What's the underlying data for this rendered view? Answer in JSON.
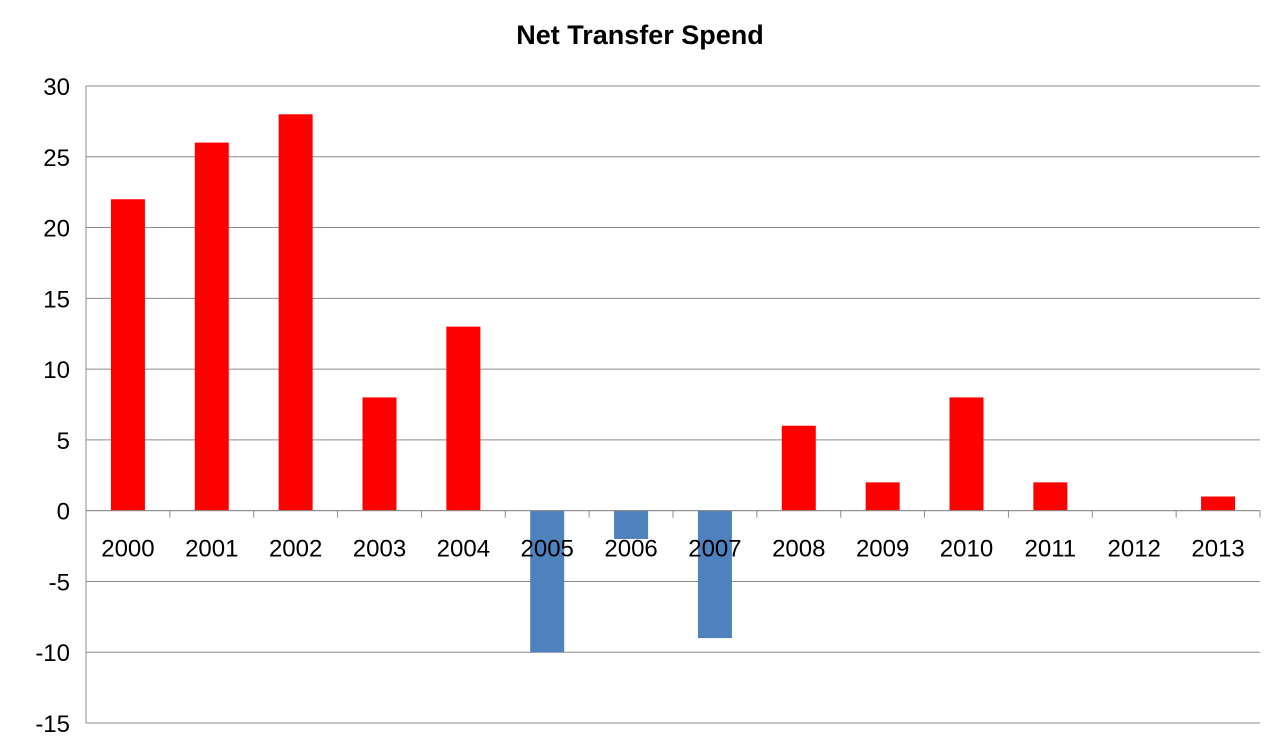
{
  "chart_data": {
    "type": "bar",
    "title": "Net Transfer Spend",
    "xlabel": "",
    "ylabel": "",
    "categories": [
      "2000",
      "2001",
      "2002",
      "2003",
      "2004",
      "2005",
      "2006",
      "2007",
      "2008",
      "2009",
      "2010",
      "2011",
      "2012",
      "2013"
    ],
    "values": [
      22,
      26,
      28,
      8,
      13,
      -10,
      -2,
      -9,
      6,
      2,
      8,
      2,
      0,
      1
    ],
    "ylim": [
      -15,
      30
    ],
    "yticks": [
      30,
      25,
      20,
      15,
      10,
      5,
      0,
      -5,
      -10,
      -15
    ],
    "grid": true,
    "legend": "none",
    "colors": {
      "positive": "#ff0000",
      "negative": "#4f81bd"
    }
  }
}
